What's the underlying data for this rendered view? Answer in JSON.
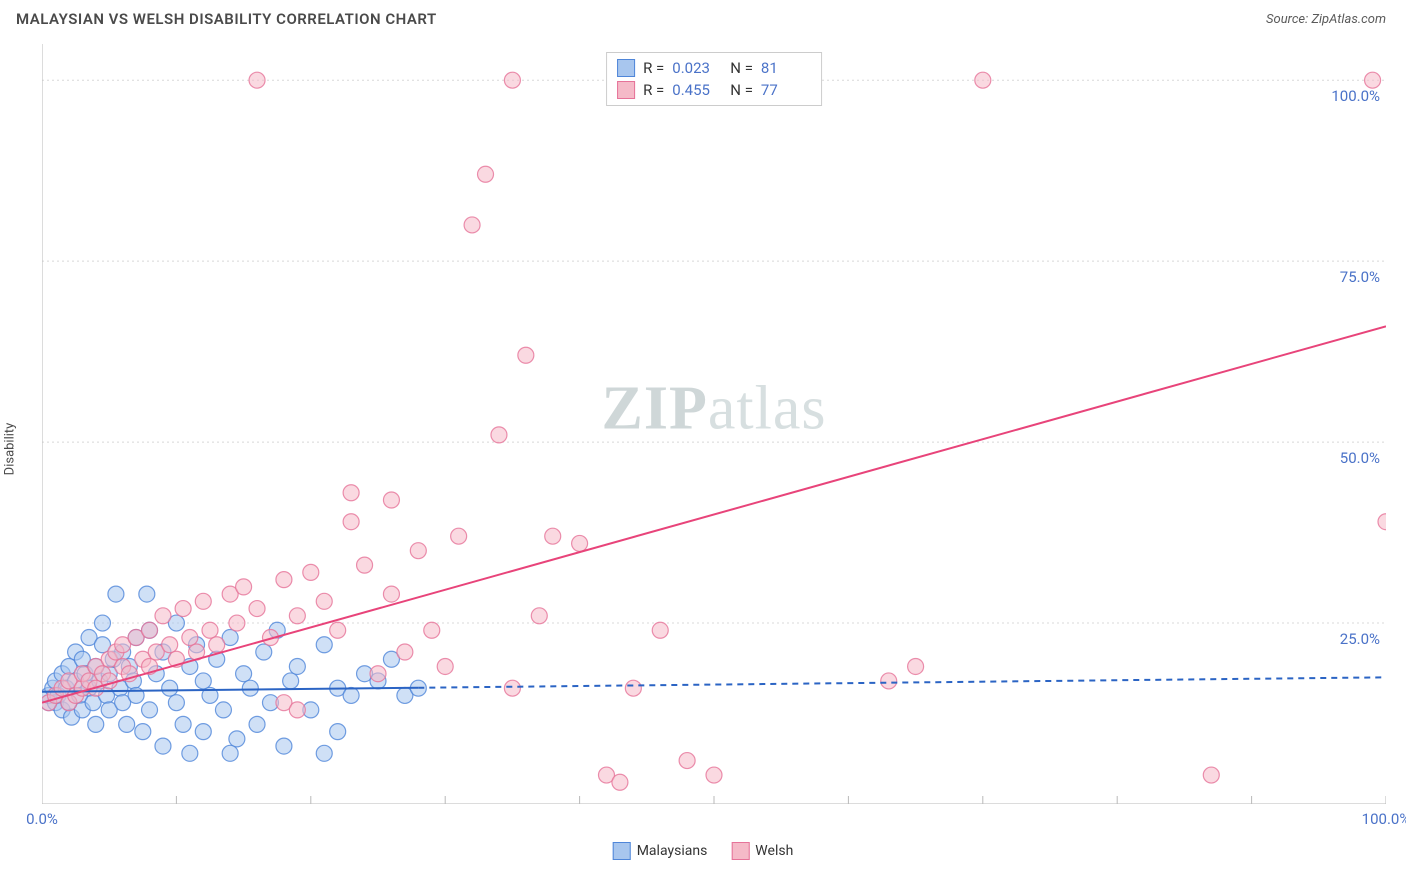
{
  "header": {
    "title": "MALAYSIAN VS WELSH DISABILITY CORRELATION CHART",
    "source_prefix": "Source: ",
    "source_name": "ZipAtlas.com"
  },
  "chart": {
    "type": "scatter",
    "ylabel": "Disability",
    "xlim": [
      0,
      100
    ],
    "ylim": [
      0,
      105
    ],
    "background_color": "#ffffff",
    "grid_color": "#d8d8d8",
    "axis_color": "#bababa",
    "tick_label_color": "#4a72c8",
    "yticks": [
      {
        "value": 25,
        "label": "25.0%"
      },
      {
        "value": 50,
        "label": "50.0%"
      },
      {
        "value": 75,
        "label": "75.0%"
      },
      {
        "value": 100,
        "label": "100.0%"
      }
    ],
    "xticks_minor": [
      10,
      20,
      30,
      40,
      50,
      60,
      70,
      80,
      90
    ],
    "xticks_labels": [
      {
        "value": 0,
        "label": "0.0%"
      },
      {
        "value": 100,
        "label": "100.0%"
      }
    ],
    "watermark": {
      "bold": "ZIP",
      "rest": "atlas"
    },
    "marker_radius": 8,
    "marker_opacity": 0.55,
    "series": [
      {
        "name": "Malaysians",
        "color_fill": "#a8c6ee",
        "color_stroke": "#4f86d9",
        "r_value": "0.023",
        "n_value": "81",
        "trend": {
          "x1": 0,
          "y1": 15.5,
          "x2": 100,
          "y2": 17.5,
          "solid_until_x": 28,
          "color": "#2b64c4",
          "width": 2
        },
        "points": [
          [
            0.5,
            14
          ],
          [
            0.5,
            15
          ],
          [
            0.8,
            16
          ],
          [
            1,
            14
          ],
          [
            1,
            17
          ],
          [
            1.2,
            15
          ],
          [
            1.5,
            13
          ],
          [
            1.5,
            18
          ],
          [
            1.8,
            16
          ],
          [
            2,
            14
          ],
          [
            2,
            19
          ],
          [
            2.2,
            12
          ],
          [
            2.5,
            17
          ],
          [
            2.5,
            21
          ],
          [
            2.8,
            15
          ],
          [
            3,
            13
          ],
          [
            3,
            20
          ],
          [
            3.2,
            18
          ],
          [
            3.5,
            16
          ],
          [
            3.5,
            23
          ],
          [
            3.8,
            14
          ],
          [
            4,
            11
          ],
          [
            4,
            19
          ],
          [
            4.3,
            17
          ],
          [
            4.5,
            22
          ],
          [
            4.5,
            25
          ],
          [
            4.8,
            15
          ],
          [
            5,
            13
          ],
          [
            5,
            18
          ],
          [
            5.3,
            20
          ],
          [
            5.5,
            29
          ],
          [
            5.8,
            16
          ],
          [
            6,
            14
          ],
          [
            6,
            21
          ],
          [
            6.3,
            11
          ],
          [
            6.5,
            19
          ],
          [
            6.8,
            17
          ],
          [
            7,
            23
          ],
          [
            7,
            15
          ],
          [
            7.5,
            10
          ],
          [
            7.8,
            29
          ],
          [
            8,
            24
          ],
          [
            8,
            13
          ],
          [
            8.5,
            18
          ],
          [
            9,
            21
          ],
          [
            9,
            8
          ],
          [
            9.5,
            16
          ],
          [
            10,
            14
          ],
          [
            10,
            25
          ],
          [
            10.5,
            11
          ],
          [
            11,
            19
          ],
          [
            11,
            7
          ],
          [
            11.5,
            22
          ],
          [
            12,
            17
          ],
          [
            12,
            10
          ],
          [
            12.5,
            15
          ],
          [
            13,
            20
          ],
          [
            13.5,
            13
          ],
          [
            14,
            23
          ],
          [
            14.5,
            9
          ],
          [
            15,
            18
          ],
          [
            15.5,
            16
          ],
          [
            16,
            11
          ],
          [
            16.5,
            21
          ],
          [
            17,
            14
          ],
          [
            17.5,
            24
          ],
          [
            18,
            8
          ],
          [
            18.5,
            17
          ],
          [
            19,
            19
          ],
          [
            20,
            13
          ],
          [
            21,
            22
          ],
          [
            22,
            10
          ],
          [
            22,
            16
          ],
          [
            23,
            15
          ],
          [
            24,
            18
          ],
          [
            25,
            17
          ],
          [
            26,
            20
          ],
          [
            27,
            15
          ],
          [
            28,
            16
          ],
          [
            21,
            7
          ],
          [
            14,
            7
          ]
        ]
      },
      {
        "name": "Welsh",
        "color_fill": "#f5bac8",
        "color_stroke": "#e67399",
        "r_value": "0.455",
        "n_value": "77",
        "trend": {
          "x1": 0,
          "y1": 14,
          "x2": 100,
          "y2": 66,
          "solid_until_x": 100,
          "color": "#e8447a",
          "width": 2
        },
        "points": [
          [
            0.5,
            14
          ],
          [
            1,
            15
          ],
          [
            1.5,
            16
          ],
          [
            2,
            14
          ],
          [
            2,
            17
          ],
          [
            2.5,
            15
          ],
          [
            3,
            16
          ],
          [
            3,
            18
          ],
          [
            3.5,
            17
          ],
          [
            4,
            19
          ],
          [
            4,
            16
          ],
          [
            4.5,
            18
          ],
          [
            5,
            20
          ],
          [
            5,
            17
          ],
          [
            5.5,
            21
          ],
          [
            6,
            19
          ],
          [
            6,
            22
          ],
          [
            6.5,
            18
          ],
          [
            7,
            23
          ],
          [
            7.5,
            20
          ],
          [
            8,
            24
          ],
          [
            8,
            19
          ],
          [
            8.5,
            21
          ],
          [
            9,
            26
          ],
          [
            9.5,
            22
          ],
          [
            10,
            20
          ],
          [
            10.5,
            27
          ],
          [
            11,
            23
          ],
          [
            11.5,
            21
          ],
          [
            12,
            28
          ],
          [
            12.5,
            24
          ],
          [
            13,
            22
          ],
          [
            14,
            29
          ],
          [
            14.5,
            25
          ],
          [
            15,
            30
          ],
          [
            16,
            27
          ],
          [
            17,
            23
          ],
          [
            18,
            31
          ],
          [
            18,
            14
          ],
          [
            19,
            26
          ],
          [
            20,
            32
          ],
          [
            21,
            28
          ],
          [
            22,
            24
          ],
          [
            23,
            39
          ],
          [
            23,
            43
          ],
          [
            24,
            33
          ],
          [
            25,
            18
          ],
          [
            26,
            29
          ],
          [
            26,
            42
          ],
          [
            27,
            21
          ],
          [
            28,
            35
          ],
          [
            29,
            24
          ],
          [
            30,
            19
          ],
          [
            31,
            37
          ],
          [
            32,
            80
          ],
          [
            33,
            87
          ],
          [
            34,
            51
          ],
          [
            35,
            100
          ],
          [
            36,
            62
          ],
          [
            37,
            26
          ],
          [
            38,
            37
          ],
          [
            40,
            36
          ],
          [
            42,
            4
          ],
          [
            43,
            3
          ],
          [
            44,
            16
          ],
          [
            46,
            24
          ],
          [
            48,
            6
          ],
          [
            50,
            4
          ],
          [
            63,
            17
          ],
          [
            65,
            19
          ],
          [
            70,
            100
          ],
          [
            87,
            4
          ],
          [
            99,
            100
          ],
          [
            100,
            39
          ],
          [
            16,
            100
          ],
          [
            35,
            16
          ],
          [
            19,
            13
          ]
        ]
      }
    ],
    "bottom_legend": [
      {
        "label": "Malaysians",
        "fill": "#a8c6ee",
        "stroke": "#4f86d9"
      },
      {
        "label": "Welsh",
        "fill": "#f5bac8",
        "stroke": "#e67399"
      }
    ]
  }
}
